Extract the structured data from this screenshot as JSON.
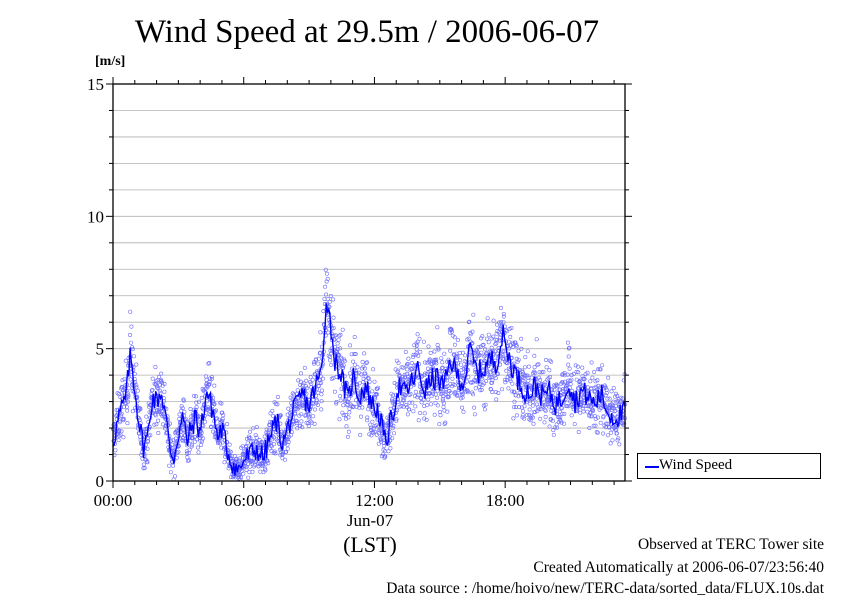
{
  "chart_data": {
    "type": "line",
    "title": "Wind Speed at 29.5m / 2006-06-07",
    "ylabel": "[m/s]",
    "xlabel": "(LST)",
    "date_label": "Jun-07",
    "ylim": [
      0,
      15
    ],
    "yticks": [
      "0",
      "5",
      "10",
      "15"
    ],
    "xlim_hours": [
      0,
      23.5
    ],
    "xticks": [
      {
        "hour": 0,
        "label": "00:00"
      },
      {
        "hour": 6,
        "label": "06:00"
      },
      {
        "hour": 12,
        "label": "12:00"
      },
      {
        "hour": 18,
        "label": "18:00"
      }
    ],
    "grid": true,
    "legend_position": "right, outside plot, bottom",
    "series": [
      {
        "name": "Wind Speed",
        "color": "#0000ff",
        "x_hours": [
          0,
          0.3,
          0.6,
          0.8,
          1.0,
          1.2,
          1.4,
          1.6,
          1.8,
          2.0,
          2.2,
          2.4,
          2.6,
          2.8,
          3.0,
          3.2,
          3.4,
          3.6,
          3.8,
          4.0,
          4.3,
          4.6,
          4.8,
          5.0,
          5.2,
          5.4,
          5.6,
          5.8,
          6.0,
          6.3,
          6.6,
          6.9,
          7.2,
          7.5,
          7.8,
          8.1,
          8.4,
          8.7,
          9.0,
          9.3,
          9.6,
          9.8,
          10.0,
          10.2,
          10.4,
          10.6,
          10.8,
          11.0,
          11.3,
          11.6,
          11.9,
          12.2,
          12.5,
          12.8,
          13.1,
          13.4,
          13.7,
          14.0,
          14.3,
          14.6,
          14.9,
          15.2,
          15.5,
          15.8,
          16.1,
          16.4,
          16.7,
          17.0,
          17.3,
          17.6,
          17.9,
          18.2,
          18.5,
          18.8,
          19.1,
          19.4,
          19.7,
          20.0,
          20.3,
          20.6,
          20.9,
          21.2,
          21.5,
          21.8,
          22.1,
          22.4,
          22.7,
          23.0,
          23.3,
          23.5
        ],
        "y_speed_m_s": [
          1.5,
          2.5,
          3.2,
          4.8,
          3.5,
          2.2,
          1.3,
          1.7,
          3.2,
          3.0,
          3.4,
          2.6,
          1.2,
          0.9,
          1.8,
          2.4,
          1.5,
          2.0,
          2.4,
          1.8,
          3.4,
          2.6,
          1.6,
          2.0,
          1.3,
          0.8,
          0.5,
          0.4,
          0.8,
          1.0,
          1.2,
          0.9,
          1.6,
          2.3,
          1.4,
          2.2,
          2.8,
          3.3,
          2.8,
          3.6,
          4.2,
          7.1,
          5.8,
          4.5,
          4.2,
          3.6,
          3.0,
          4.0,
          3.2,
          3.6,
          2.9,
          2.6,
          1.4,
          2.4,
          3.6,
          3.3,
          3.7,
          4.2,
          3.4,
          3.8,
          3.9,
          3.5,
          4.6,
          4.0,
          3.7,
          5.0,
          4.1,
          4.2,
          4.6,
          4.5,
          5.5,
          4.6,
          4.0,
          3.5,
          3.3,
          3.6,
          3.2,
          3.4,
          2.9,
          3.1,
          3.8,
          3.0,
          3.4,
          3.2,
          2.9,
          3.3,
          2.6,
          2.4,
          2.5,
          2.6
        ]
      }
    ]
  },
  "footer": {
    "line1": "Observed at TERC Tower site",
    "line2": "Created Automatically at 2006-06-07/23:56:40",
    "line3": "Data source : /home/hoivo/new/TERC-data/sorted_data/FLUX.10s.dat"
  }
}
